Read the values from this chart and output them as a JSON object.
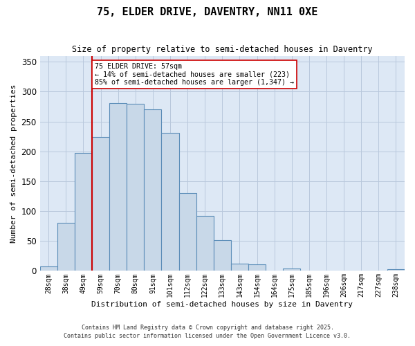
{
  "title": "75, ELDER DRIVE, DAVENTRY, NN11 0XE",
  "subtitle": "Size of property relative to semi-detached houses in Daventry",
  "xlabel": "Distribution of semi-detached houses by size in Daventry",
  "ylabel": "Number of semi-detached properties",
  "bar_labels": [
    "28sqm",
    "38sqm",
    "49sqm",
    "59sqm",
    "70sqm",
    "80sqm",
    "91sqm",
    "101sqm",
    "112sqm",
    "122sqm",
    "133sqm",
    "143sqm",
    "154sqm",
    "164sqm",
    "175sqm",
    "185sqm",
    "196sqm",
    "206sqm",
    "217sqm",
    "227sqm",
    "238sqm"
  ],
  "bar_values": [
    8,
    80,
    197,
    224,
    281,
    280,
    270,
    231,
    130,
    92,
    52,
    12,
    11,
    0,
    4,
    0,
    1,
    0,
    0,
    0,
    3
  ],
  "bar_color": "#c8d8e8",
  "bar_edge_color": "#5b8db8",
  "vline_x_index": 3,
  "vline_color": "#cc0000",
  "annotation_text": "75 ELDER DRIVE: 57sqm\n← 14% of semi-detached houses are smaller (223)\n85% of semi-detached houses are larger (1,347) →",
  "annotation_box_color": "#ffffff",
  "annotation_box_edge": "#cc0000",
  "ylim": [
    0,
    360
  ],
  "yticks": [
    0,
    50,
    100,
    150,
    200,
    250,
    300,
    350
  ],
  "plot_bg_color": "#dde8f5",
  "grid_color": "#b8c8dc",
  "footer_line1": "Contains HM Land Registry data © Crown copyright and database right 2025.",
  "footer_line2": "Contains public sector information licensed under the Open Government Licence v3.0."
}
